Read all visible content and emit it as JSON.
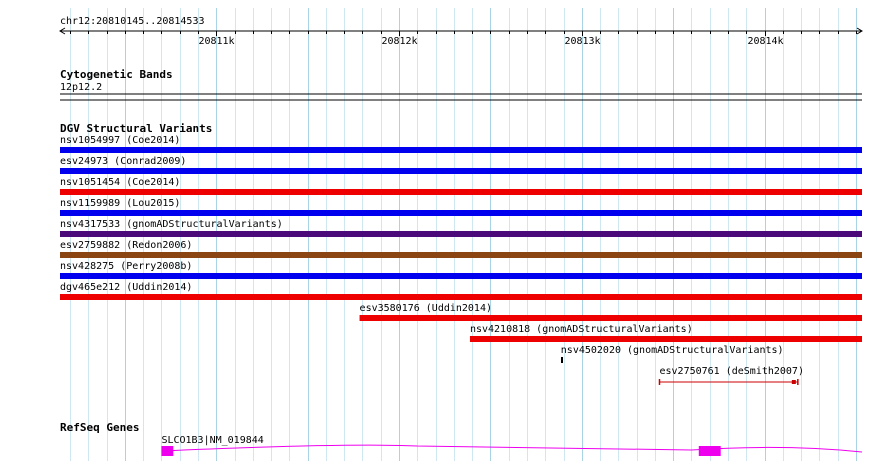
{
  "region": {
    "label": "chr12:20810145..20814533",
    "start": 20810145,
    "end": 20814533,
    "ticks": [
      {
        "pos": 20811000,
        "label": "20811k"
      },
      {
        "pos": 20812000,
        "label": "20812k"
      },
      {
        "pos": 20813000,
        "label": "20813k"
      },
      {
        "pos": 20814000,
        "label": "20814k"
      }
    ]
  },
  "tracks": {
    "cytoband": {
      "title": "Cytogenetic Bands",
      "band": "12p12.2"
    },
    "dgv": {
      "title": "DGV Structural Variants",
      "variants": [
        {
          "label": "nsv1054997 (Coe2014)",
          "color": "#0000ee",
          "start": 20810145,
          "end": 20814533
        },
        {
          "label": "esv24973 (Conrad2009)",
          "color": "#0000ee",
          "start": 20810145,
          "end": 20814533
        },
        {
          "label": "nsv1051454 (Coe2014)",
          "color": "#ee0000",
          "start": 20810145,
          "end": 20814533
        },
        {
          "label": "nsv1159989 (Lou2015)",
          "color": "#0000ee",
          "start": 20810145,
          "end": 20814533
        },
        {
          "label": "nsv4317533 (gnomADStructuralVariants)",
          "color": "#4b0a7a",
          "start": 20810145,
          "end": 20814533
        },
        {
          "label": "esv2759882 (Redon2006)",
          "color": "#8b4513",
          "start": 20810145,
          "end": 20814533
        },
        {
          "label": "nsv428275 (Perry2008b)",
          "color": "#0000ee",
          "start": 20810145,
          "end": 20814533
        },
        {
          "label": "dgv465e212 (Uddin2014)",
          "color": "#ee0000",
          "start": 20810145,
          "end": 20814533
        },
        {
          "label": "esv3580176 (Uddin2014)",
          "color": "#ee0000",
          "start": 20811784,
          "end": 20814533
        },
        {
          "label": "nsv4210818 (gnomADStructuralVariants)",
          "color": "#ee0000",
          "start": 20812388,
          "end": 20814533
        },
        {
          "label": "nsv4502020 (gnomADStructuralVariants)",
          "color": "#000000",
          "start": 20812885,
          "end": 20812895,
          "style": "tick"
        },
        {
          "label": "esv2750761 (deSmith2007)",
          "color": "#cc0000",
          "start": 20813425,
          "end": 20814182,
          "style": "interval",
          "marker": 20814160
        }
      ]
    },
    "refseq": {
      "title": "RefSeq Genes",
      "gene": {
        "label": "SLCO1B3|NM_019844",
        "color": "#ee00ee",
        "start": 20810700,
        "end": 20814533,
        "exons": [
          {
            "start": 20810700,
            "end": 20810765
          },
          {
            "start": 20813640,
            "end": 20813760
          }
        ]
      }
    }
  }
}
